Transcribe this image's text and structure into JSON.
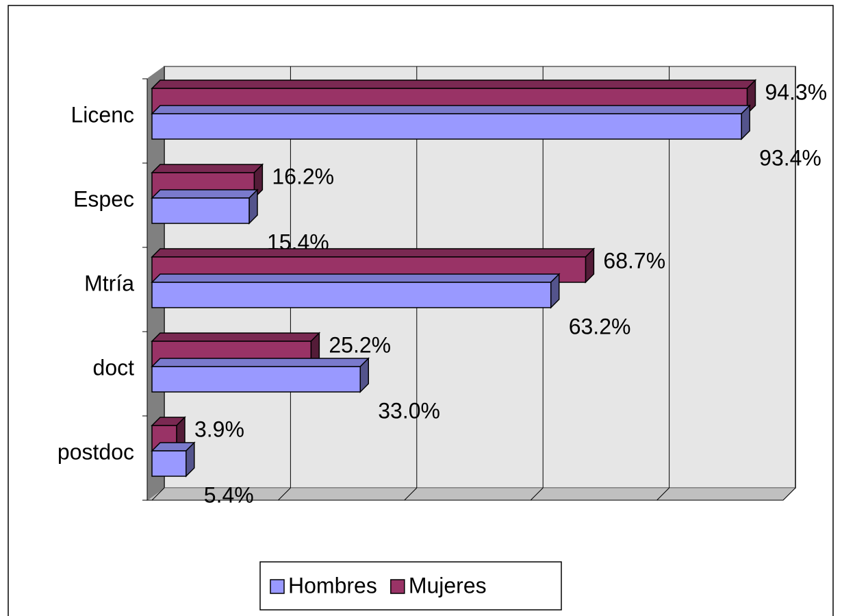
{
  "chart_data": {
    "type": "bar",
    "orientation": "horizontal",
    "three_d": true,
    "categories": [
      "Licenc",
      "Espec",
      "Mtría",
      "doct",
      "postdoc"
    ],
    "series": [
      {
        "name": "Hombres",
        "color": "#9999ff",
        "values": [
          93.4,
          15.4,
          63.2,
          33.0,
          5.4
        ],
        "value_labels": [
          "93.4%",
          "15.4%",
          "63.2%",
          "33.0%",
          "5.4%"
        ]
      },
      {
        "name": "Mujeres",
        "color": "#993366",
        "values": [
          94.3,
          16.2,
          68.7,
          25.2,
          3.9
        ],
        "value_labels": [
          "94.3%",
          "16.2%",
          "68.7%",
          "25.2%",
          "3.9%"
        ]
      }
    ],
    "xlim": [
      0,
      100
    ],
    "xticks": [
      0,
      20,
      40,
      60,
      80,
      100
    ],
    "tick_labels": false,
    "grid": true,
    "legend": "bottom"
  }
}
